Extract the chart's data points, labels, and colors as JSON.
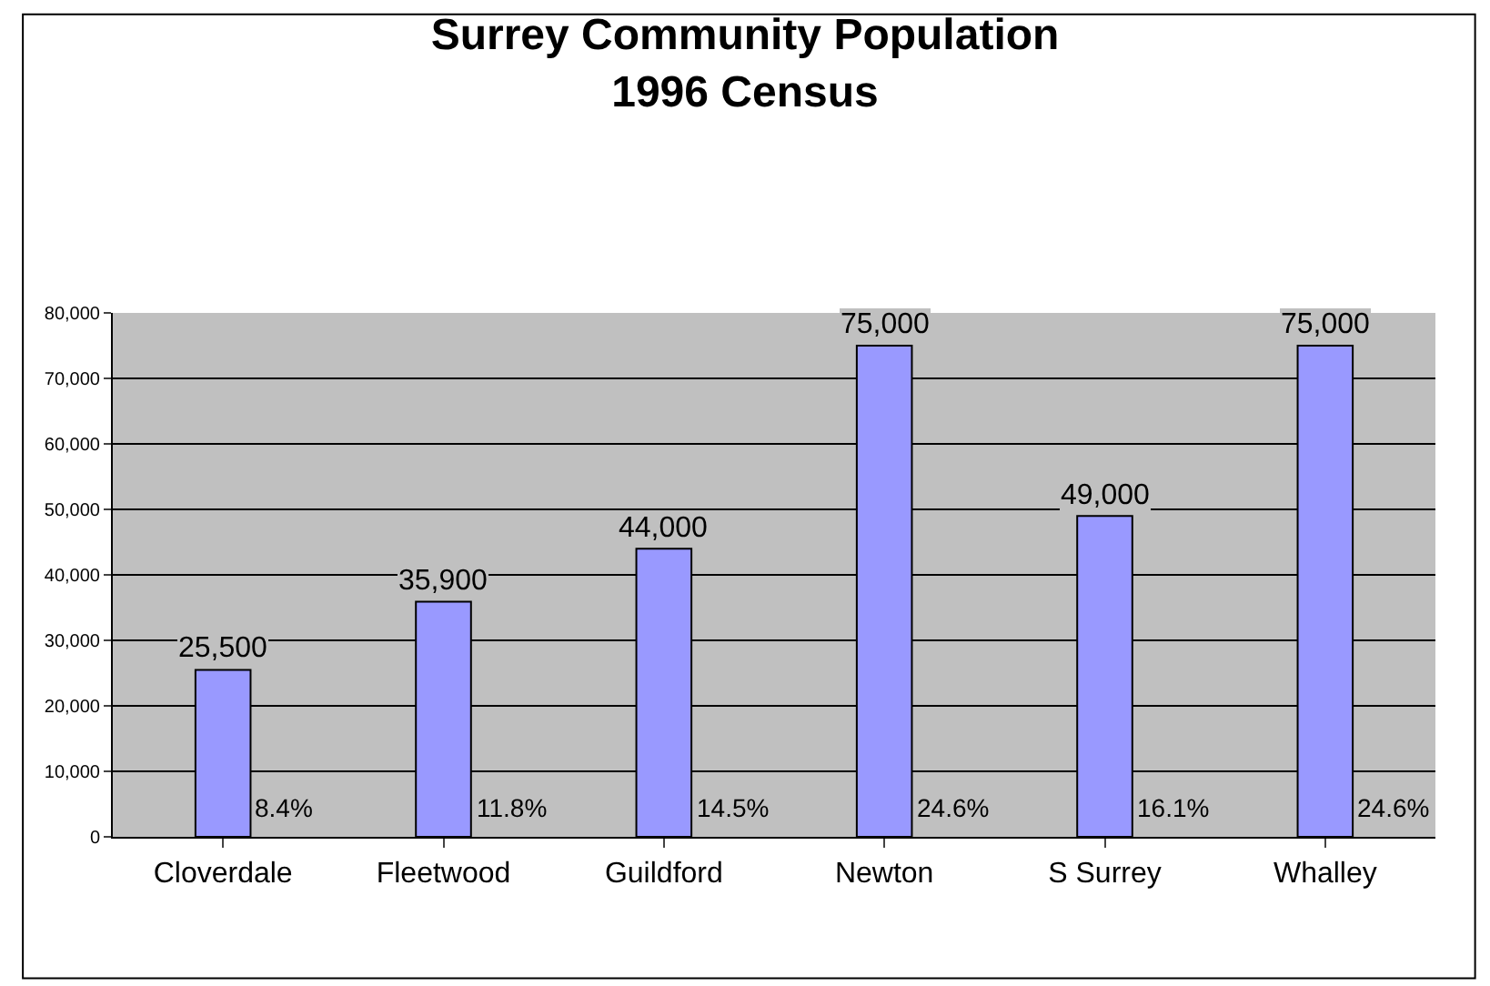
{
  "chart_data": {
    "type": "bar",
    "title": "Surrey Community Population\n1996 Census",
    "categories": [
      "Cloverdale",
      "Fleetwood",
      "Guildford",
      "Newton",
      "S Surrey",
      "Whalley"
    ],
    "values": [
      25500,
      35900,
      44000,
      75000,
      49000,
      75000
    ],
    "value_labels": [
      "25,500",
      "35,900",
      "44,000",
      "75,000",
      "49,000",
      "75,000"
    ],
    "color": "#9999ff",
    "annotations": [
      "8.4%",
      "11.8%",
      "14.5%",
      "24.6%",
      "16.1%",
      "24.6%"
    ],
    "ylim": [
      0,
      80000
    ],
    "yticks": [
      {
        "value": 0,
        "label": "0"
      },
      {
        "value": 10000,
        "label": "10,000"
      },
      {
        "value": 20000,
        "label": "20,000"
      },
      {
        "value": 30000,
        "label": "30,000"
      },
      {
        "value": 40000,
        "label": "40,000"
      },
      {
        "value": 50000,
        "label": "50,000"
      },
      {
        "value": 60000,
        "label": "60,000"
      },
      {
        "value": 70000,
        "label": "70,000"
      },
      {
        "value": 80000,
        "label": "80,000"
      }
    ],
    "grid": "y",
    "legend": false
  }
}
